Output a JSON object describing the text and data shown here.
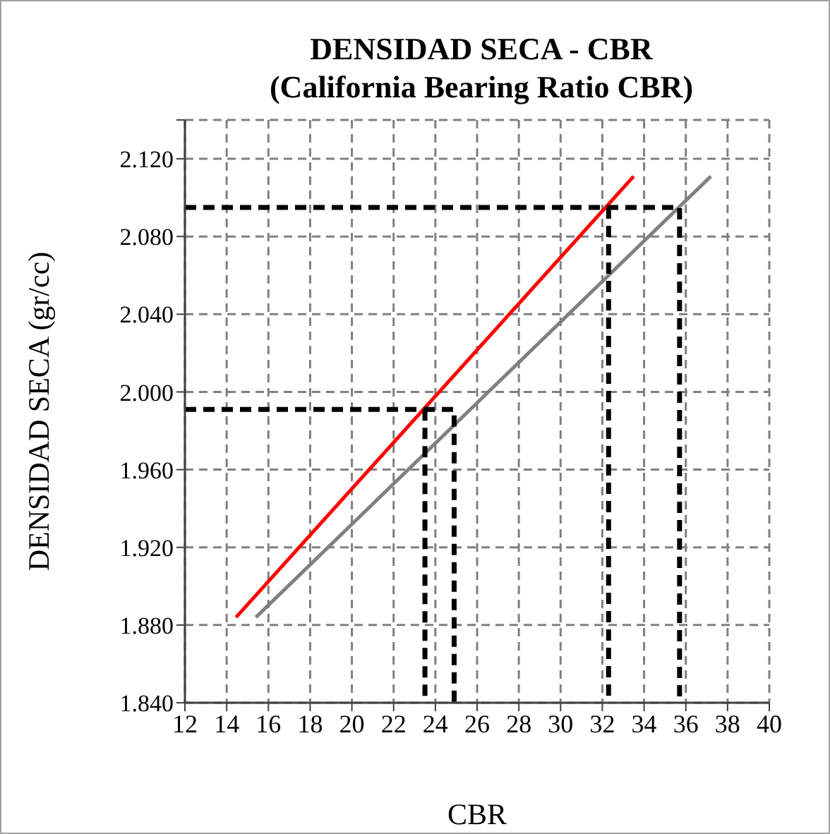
{
  "chart_data": {
    "type": "line",
    "title": "DENSIDAD SECA - CBR",
    "subtitle": "(California Bearing Ratio CBR)",
    "xlabel": "CBR",
    "ylabel": "DENSIDAD SECA (gr/cc)",
    "xlim": [
      12,
      40
    ],
    "xticks": [
      12,
      14,
      16,
      18,
      20,
      22,
      24,
      26,
      28,
      30,
      32,
      34,
      36,
      38,
      40
    ],
    "ylim": [
      1.84,
      2.14
    ],
    "yticks": [
      {
        "value": 1.84,
        "label": "1.840"
      },
      {
        "value": 1.88,
        "label": "1.880"
      },
      {
        "value": 1.92,
        "label": "1.920"
      },
      {
        "value": 1.96,
        "label": "1.960"
      },
      {
        "value": 2.0,
        "label": "2.000"
      },
      {
        "value": 2.04,
        "label": "2.040"
      },
      {
        "value": 2.08,
        "label": "2.080"
      },
      {
        "value": 2.12,
        "label": "2.120"
      },
      {
        "value": 2.14,
        "label": null
      }
    ],
    "grid": true,
    "marker": "none",
    "line_style": "solid",
    "series": [
      {
        "color": "#ff0000",
        "x": [
          14.45,
          33.5
        ],
        "values": [
          1.884,
          2.111
        ]
      },
      {
        "color": "#808080",
        "x": [
          15.4,
          37.2
        ],
        "values": [
          1.884,
          2.111
        ]
      },
      {
        "color": "#000000",
        "line_style": "dashed",
        "x": [
          12,
          35.7,
          35.7
        ],
        "values": [
          2.095,
          2.095,
          1.84
        ]
      },
      {
        "color": "#000000",
        "line_style": "dashed",
        "x": [
          32.3,
          32.3
        ],
        "values": [
          2.095,
          1.84
        ]
      },
      {
        "color": "#000000",
        "line_style": "dashed",
        "x": [
          12,
          24.9,
          24.9
        ],
        "values": [
          1.991,
          1.991,
          1.84
        ]
      },
      {
        "color": "#000000",
        "line_style": "dashed",
        "x": [
          23.5,
          23.5
        ],
        "values": [
          1.991,
          1.84
        ]
      }
    ]
  }
}
